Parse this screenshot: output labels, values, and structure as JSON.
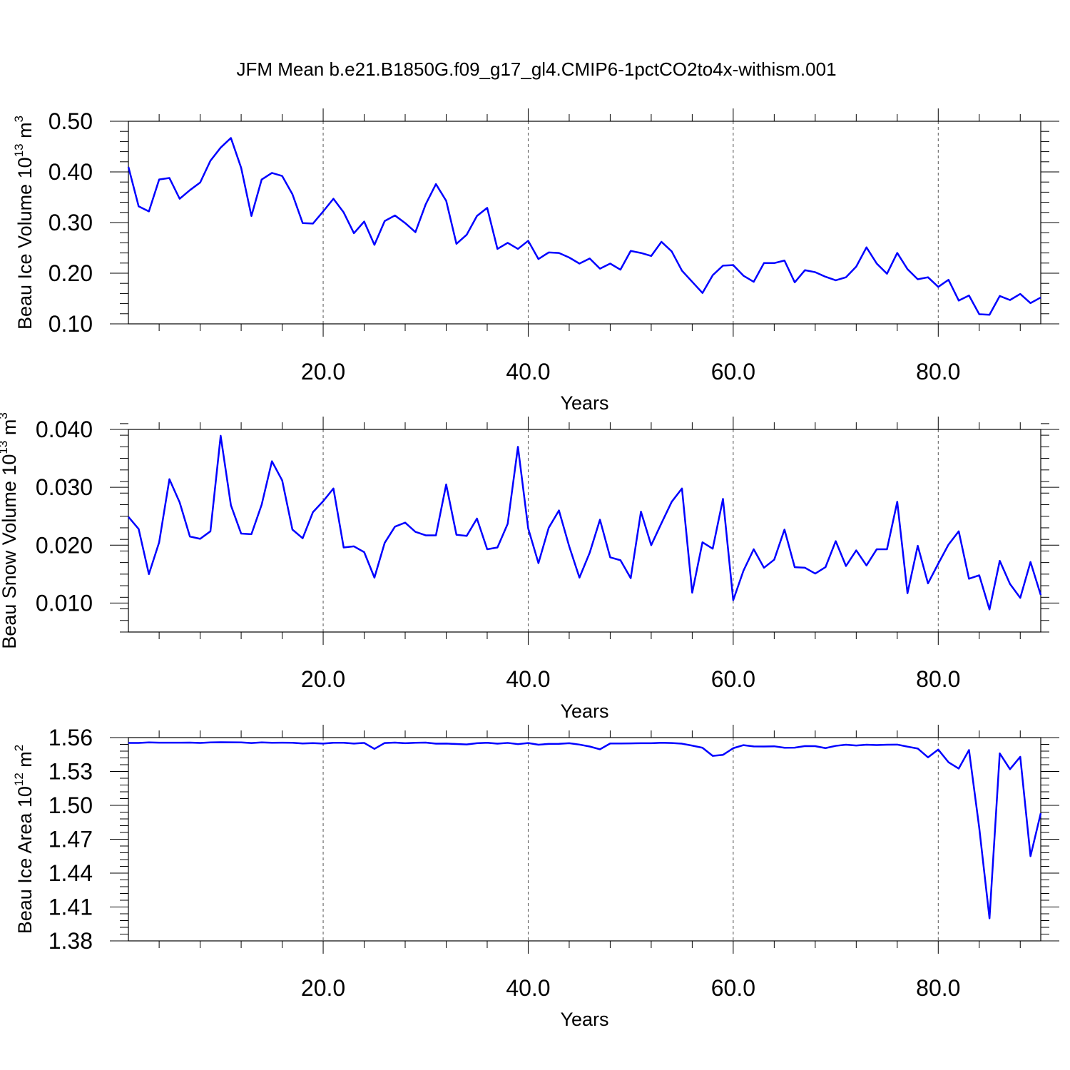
{
  "title": "JFM Mean b.e21.B1850G.f09_g17_gl4.CMIP6-1pctCO2to4x-withism.001",
  "colors": {
    "series": "#0000ff",
    "frame": "#000000",
    "grid": "#555555"
  },
  "chart_data": [
    {
      "type": "line",
      "ylabel_main": "Beau Ice Volume 10",
      "ylabel_exp": "13",
      "ylabel_unit": "m",
      "ylabel_unit_exp": "3",
      "xlabel": "Years",
      "xlim": [
        1,
        90
      ],
      "ylim": [
        0.1,
        0.5
      ],
      "yticks": [
        0.1,
        0.2,
        0.3,
        0.4,
        0.5
      ],
      "ytick_labels": [
        "0.10",
        "0.20",
        "0.30",
        "0.40",
        "0.50"
      ],
      "yminor_step": 0.02,
      "xticks": [
        20,
        40,
        60,
        80
      ],
      "xtick_labels": [
        "20.0",
        "40.0",
        "60.0",
        "80.0"
      ],
      "xminor_step": 4,
      "grid_x": true,
      "series": [
        {
          "x_start": 1,
          "values": [
            0.41,
            0.332,
            0.322,
            0.385,
            0.388,
            0.347,
            0.364,
            0.379,
            0.422,
            0.448,
            0.467,
            0.408,
            0.313,
            0.385,
            0.398,
            0.392,
            0.356,
            0.299,
            0.298,
            0.322,
            0.347,
            0.32,
            0.279,
            0.302,
            0.256,
            0.303,
            0.314,
            0.299,
            0.281,
            0.336,
            0.376,
            0.343,
            0.258,
            0.276,
            0.313,
            0.329,
            0.248,
            0.26,
            0.248,
            0.264,
            0.228,
            0.241,
            0.24,
            0.231,
            0.219,
            0.229,
            0.209,
            0.219,
            0.207,
            0.244,
            0.24,
            0.234,
            0.262,
            0.243,
            0.205,
            0.183,
            0.161,
            0.196,
            0.215,
            0.216,
            0.195,
            0.183,
            0.22,
            0.22,
            0.225,
            0.182,
            0.206,
            0.202,
            0.193,
            0.186,
            0.192,
            0.213,
            0.251,
            0.219,
            0.199,
            0.24,
            0.208,
            0.188,
            0.192,
            0.173,
            0.187,
            0.146,
            0.156,
            0.119,
            0.118,
            0.155,
            0.147,
            0.159,
            0.141,
            0.152
          ]
        }
      ]
    },
    {
      "type": "line",
      "ylabel_main": "Beau Snow Volume 10",
      "ylabel_exp": "13",
      "ylabel_unit": "m",
      "ylabel_unit_exp": "3",
      "xlabel": "Years",
      "xlim": [
        1,
        90
      ],
      "ylim": [
        0.005,
        0.04
      ],
      "yticks": [
        0.01,
        0.02,
        0.03,
        0.04
      ],
      "ytick_labels": [
        "0.010",
        "0.020",
        "0.030",
        "0.040"
      ],
      "yminor_step": 0.002,
      "xticks": [
        20,
        40,
        60,
        80
      ],
      "xtick_labels": [
        "20.0",
        "40.0",
        "60.0",
        "80.0"
      ],
      "xminor_step": 4,
      "grid_x": true,
      "series": [
        {
          "x_start": 1,
          "values": [
            0.0249,
            0.0228,
            0.015,
            0.0205,
            0.0314,
            0.0274,
            0.0215,
            0.0211,
            0.0224,
            0.0389,
            0.0269,
            0.022,
            0.0219,
            0.027,
            0.0345,
            0.0312,
            0.0227,
            0.0212,
            0.0257,
            0.0276,
            0.0298,
            0.0196,
            0.0198,
            0.0188,
            0.0144,
            0.0204,
            0.0232,
            0.0239,
            0.0223,
            0.0217,
            0.0217,
            0.0305,
            0.0218,
            0.0216,
            0.0246,
            0.0193,
            0.0196,
            0.0237,
            0.037,
            0.0229,
            0.0169,
            0.023,
            0.026,
            0.0198,
            0.0144,
            0.0187,
            0.0244,
            0.0179,
            0.0174,
            0.0143,
            0.0258,
            0.02,
            0.0238,
            0.0275,
            0.0298,
            0.0118,
            0.0205,
            0.0194,
            0.028,
            0.0105,
            0.0156,
            0.0193,
            0.0161,
            0.0175,
            0.0227,
            0.0162,
            0.0161,
            0.0151,
            0.0162,
            0.0207,
            0.0164,
            0.0191,
            0.0165,
            0.0193,
            0.0193,
            0.0275,
            0.0117,
            0.0199,
            0.0134,
            0.0168,
            0.0201,
            0.0224,
            0.0142,
            0.0148,
            0.0089,
            0.0173,
            0.0133,
            0.0109,
            0.0171,
            0.0114
          ]
        }
      ]
    },
    {
      "type": "line",
      "ylabel_main": "Beau Ice Area 10",
      "ylabel_exp": "12",
      "ylabel_unit": "m",
      "ylabel_unit_exp": "2",
      "xlabel": "Years",
      "xlim": [
        1,
        90
      ],
      "ylim": [
        1.38,
        1.56
      ],
      "yticks": [
        1.38,
        1.41,
        1.44,
        1.47,
        1.5,
        1.53,
        1.56
      ],
      "ytick_labels": [
        "1.38",
        "1.41",
        "1.44",
        "1.47",
        "1.50",
        "1.53",
        "1.56"
      ],
      "yminor_step": 0.006,
      "xticks": [
        20,
        40,
        60,
        80
      ],
      "xtick_labels": [
        "20.0",
        "40.0",
        "60.0",
        "80.0"
      ],
      "xminor_step": 4,
      "grid_x": true,
      "series": [
        {
          "x_start": 1,
          "values": [
            1.5553,
            1.5553,
            1.5557,
            1.5555,
            1.5555,
            1.5555,
            1.5556,
            1.5553,
            1.5557,
            1.5559,
            1.5558,
            1.5557,
            1.5552,
            1.5557,
            1.5554,
            1.5555,
            1.5554,
            1.5548,
            1.5551,
            1.5547,
            1.5554,
            1.5554,
            1.5547,
            1.5553,
            1.55,
            1.5552,
            1.5556,
            1.555,
            1.5554,
            1.5556,
            1.5546,
            1.5547,
            1.5543,
            1.5539,
            1.555,
            1.5554,
            1.5546,
            1.5553,
            1.5542,
            1.5552,
            1.5537,
            1.5544,
            1.5545,
            1.555,
            1.5538,
            1.5521,
            1.5496,
            1.5548,
            1.5548,
            1.5549,
            1.555,
            1.555,
            1.5554,
            1.5552,
            1.5546,
            1.5529,
            1.551,
            1.5438,
            1.5447,
            1.5506,
            1.5533,
            1.5522,
            1.5521,
            1.5523,
            1.551,
            1.5511,
            1.5525,
            1.5524,
            1.5507,
            1.5527,
            1.5537,
            1.553,
            1.5537,
            1.5534,
            1.5537,
            1.5538,
            1.552,
            1.5503,
            1.5425,
            1.5494,
            1.5382,
            1.5326,
            1.549,
            1.48,
            1.4,
            1.546,
            1.532,
            1.543,
            1.455,
            1.493
          ]
        }
      ]
    }
  ]
}
